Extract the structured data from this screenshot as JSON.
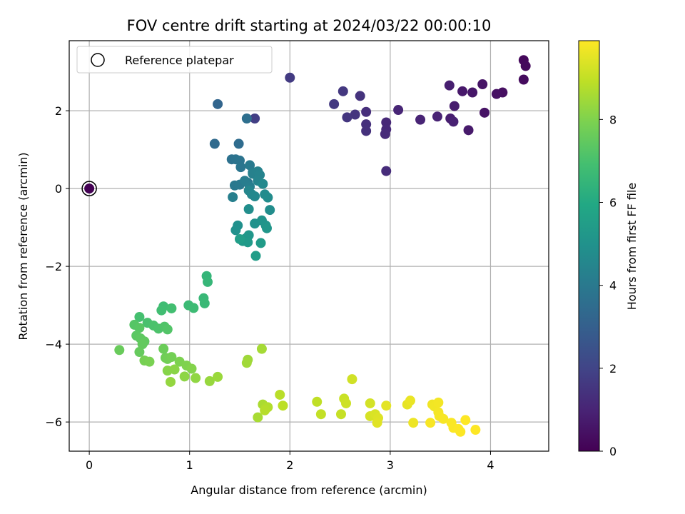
{
  "chart_data": {
    "type": "scatter",
    "title": "FOV centre drift starting at 2024/03/22 00:00:10",
    "xlabel": "Angular distance from reference (arcmin)",
    "ylabel": "Rotation from reference (arcmin)",
    "xlim": [
      -0.2,
      4.58
    ],
    "ylim": [
      -6.75,
      3.8
    ],
    "xticks": [
      0,
      1,
      2,
      3,
      4
    ],
    "yticks": [
      -6,
      -4,
      -2,
      0,
      2
    ],
    "grid": true,
    "legend": {
      "placement": "upper-left",
      "entries": [
        "Reference platepar"
      ]
    },
    "reference_point": {
      "x": 0,
      "y": 0
    },
    "colorbar": {
      "label": "Hours from first FF file",
      "range": [
        0,
        9.9
      ],
      "ticks": [
        0,
        2,
        4,
        6,
        8
      ],
      "colormap": "viridis"
    },
    "points": [
      [
        4.33,
        3.3,
        0.2
      ],
      [
        4.35,
        3.15,
        0.25
      ],
      [
        4.33,
        2.8,
        0.3
      ],
      [
        4.12,
        2.47,
        0.4
      ],
      [
        4.06,
        2.43,
        0.45
      ],
      [
        3.94,
        1.95,
        0.5
      ],
      [
        3.92,
        2.68,
        0.55
      ],
      [
        3.82,
        2.47,
        0.6
      ],
      [
        3.72,
        2.5,
        0.65
      ],
      [
        3.78,
        1.5,
        0.7
      ],
      [
        3.64,
        2.12,
        0.75
      ],
      [
        3.6,
        1.8,
        0.8
      ],
      [
        3.59,
        2.65,
        0.85
      ],
      [
        3.63,
        1.72,
        0.9
      ],
      [
        3.47,
        1.85,
        0.95
      ],
      [
        3.3,
        1.77,
        1.0
      ],
      [
        3.08,
        2.02,
        1.05
      ],
      [
        2.96,
        1.7,
        1.1
      ],
      [
        2.96,
        1.52,
        1.15
      ],
      [
        2.95,
        1.4,
        1.2
      ],
      [
        2.96,
        0.45,
        1.25
      ],
      [
        2.76,
        1.97,
        1.3
      ],
      [
        2.76,
        1.65,
        1.35
      ],
      [
        2.76,
        1.48,
        1.4
      ],
      [
        2.7,
        2.38,
        1.45
      ],
      [
        2.65,
        1.9,
        1.5
      ],
      [
        2.57,
        1.83,
        1.55
      ],
      [
        2.53,
        2.5,
        1.6
      ],
      [
        2.44,
        2.17,
        1.65
      ],
      [
        2.0,
        2.85,
        1.7
      ],
      [
        1.65,
        1.8,
        1.8
      ],
      [
        1.28,
        2.17,
        3.2
      ],
      [
        1.25,
        1.15,
        3.4
      ],
      [
        1.49,
        1.15,
        3.5
      ],
      [
        1.57,
        1.8,
        3.6
      ],
      [
        1.42,
        0.75,
        3.7
      ],
      [
        1.46,
        0.75,
        3.75
      ],
      [
        1.5,
        0.72,
        3.8
      ],
      [
        1.51,
        0.55,
        3.85
      ],
      [
        1.58,
        0.15,
        3.9
      ],
      [
        1.45,
        0.08,
        3.95
      ],
      [
        1.5,
        0.1,
        4.0
      ],
      [
        1.6,
        0.6,
        4.05
      ],
      [
        1.63,
        0.42,
        4.1
      ],
      [
        1.55,
        0.2,
        4.15
      ],
      [
        1.6,
        0.05,
        4.2
      ],
      [
        1.43,
        -0.22,
        4.25
      ],
      [
        1.63,
        0.38,
        4.3
      ],
      [
        1.68,
        0.44,
        4.35
      ],
      [
        1.7,
        0.35,
        4.4
      ],
      [
        1.68,
        0.2,
        4.45
      ],
      [
        1.59,
        -0.05,
        4.5
      ],
      [
        1.62,
        -0.15,
        4.55
      ],
      [
        1.65,
        -0.2,
        4.6
      ],
      [
        1.73,
        0.12,
        4.65
      ],
      [
        1.75,
        -0.15,
        4.7
      ],
      [
        1.78,
        -0.23,
        4.75
      ],
      [
        1.8,
        -0.55,
        4.8
      ],
      [
        1.59,
        -0.53,
        4.85
      ],
      [
        1.48,
        -0.95,
        4.9
      ],
      [
        1.46,
        -1.07,
        4.95
      ],
      [
        1.65,
        -0.9,
        5.0
      ],
      [
        1.72,
        -0.82,
        5.05
      ],
      [
        1.76,
        -0.95,
        5.1
      ],
      [
        1.77,
        -1.02,
        5.15
      ],
      [
        1.59,
        -1.2,
        5.2
      ],
      [
        1.56,
        -1.28,
        5.25
      ],
      [
        1.53,
        -1.35,
        5.3
      ],
      [
        1.58,
        -1.38,
        5.35
      ],
      [
        1.71,
        -1.4,
        5.4
      ],
      [
        1.66,
        -1.73,
        5.45
      ],
      [
        1.5,
        -1.3,
        5.5
      ],
      [
        1.17,
        -2.25,
        6.5
      ],
      [
        1.18,
        -2.4,
        6.55
      ],
      [
        1.14,
        -2.82,
        6.6
      ],
      [
        1.15,
        -2.95,
        6.65
      ],
      [
        0.99,
        -3.0,
        6.7
      ],
      [
        1.04,
        -3.07,
        6.75
      ],
      [
        0.74,
        -3.03,
        6.8
      ],
      [
        0.72,
        -3.13,
        6.85
      ],
      [
        0.82,
        -3.08,
        6.9
      ],
      [
        0.5,
        -3.3,
        6.95
      ],
      [
        0.58,
        -3.45,
        7.0
      ],
      [
        0.64,
        -3.52,
        7.05
      ],
      [
        0.69,
        -3.6,
        7.1
      ],
      [
        0.75,
        -3.55,
        7.15
      ],
      [
        0.78,
        -3.62,
        7.2
      ],
      [
        0.45,
        -3.5,
        7.25
      ],
      [
        0.5,
        -3.58,
        7.3
      ],
      [
        0.47,
        -3.78,
        7.35
      ],
      [
        0.51,
        -3.85,
        7.4
      ],
      [
        0.55,
        -3.93,
        7.45
      ],
      [
        0.53,
        -4.0,
        7.5
      ],
      [
        0.5,
        -4.2,
        7.55
      ],
      [
        0.3,
        -4.15,
        7.6
      ],
      [
        0.74,
        -4.12,
        7.65
      ],
      [
        0.76,
        -4.35,
        7.7
      ],
      [
        0.78,
        -4.38,
        7.75
      ],
      [
        0.82,
        -4.33,
        7.8
      ],
      [
        0.55,
        -4.42,
        7.85
      ],
      [
        0.6,
        -4.45,
        7.9
      ],
      [
        0.9,
        -4.45,
        7.95
      ],
      [
        0.97,
        -4.55,
        8.0
      ],
      [
        1.02,
        -4.63,
        8.05
      ],
      [
        0.78,
        -4.68,
        8.1
      ],
      [
        0.85,
        -4.65,
        8.15
      ],
      [
        0.95,
        -4.83,
        8.2
      ],
      [
        1.06,
        -4.87,
        8.25
      ],
      [
        0.81,
        -4.97,
        8.3
      ],
      [
        1.2,
        -4.95,
        8.35
      ],
      [
        1.28,
        -4.84,
        8.4
      ],
      [
        1.58,
        -4.4,
        8.45
      ],
      [
        1.57,
        -4.48,
        8.5
      ],
      [
        1.72,
        -4.12,
        8.55
      ],
      [
        1.68,
        -5.88,
        8.6
      ],
      [
        1.73,
        -5.55,
        8.65
      ],
      [
        1.76,
        -5.63,
        8.7
      ],
      [
        1.78,
        -5.62,
        8.75
      ],
      [
        1.75,
        -5.7,
        8.8
      ],
      [
        1.9,
        -5.3,
        8.85
      ],
      [
        1.93,
        -5.58,
        8.9
      ],
      [
        2.27,
        -5.48,
        8.95
      ],
      [
        2.31,
        -5.8,
        9.0
      ],
      [
        2.51,
        -5.8,
        9.05
      ],
      [
        2.54,
        -5.4,
        9.1
      ],
      [
        2.56,
        -5.52,
        9.15
      ],
      [
        2.62,
        -4.9,
        9.2
      ],
      [
        2.8,
        -5.52,
        9.25
      ],
      [
        2.8,
        -5.85,
        9.3
      ],
      [
        2.85,
        -5.8,
        9.35
      ],
      [
        2.88,
        -5.9,
        9.4
      ],
      [
        2.87,
        -6.02,
        9.45
      ],
      [
        2.96,
        -5.58,
        9.5
      ],
      [
        3.17,
        -5.55,
        9.55
      ],
      [
        3.2,
        -5.45,
        9.6
      ],
      [
        3.23,
        -6.02,
        9.65
      ],
      [
        3.42,
        -5.55,
        9.7
      ],
      [
        3.44,
        -5.6,
        9.72
      ],
      [
        3.48,
        -5.5,
        9.74
      ],
      [
        3.48,
        -5.75,
        9.76
      ],
      [
        3.49,
        -5.85,
        9.78
      ],
      [
        3.53,
        -5.92,
        9.8
      ],
      [
        3.4,
        -6.02,
        9.82
      ],
      [
        3.61,
        -6.02,
        9.84
      ],
      [
        3.63,
        -6.15,
        9.86
      ],
      [
        3.68,
        -6.18,
        9.88
      ],
      [
        3.7,
        -6.25,
        9.89
      ],
      [
        3.75,
        -5.95,
        9.9
      ],
      [
        3.85,
        -6.2,
        9.9
      ]
    ]
  }
}
